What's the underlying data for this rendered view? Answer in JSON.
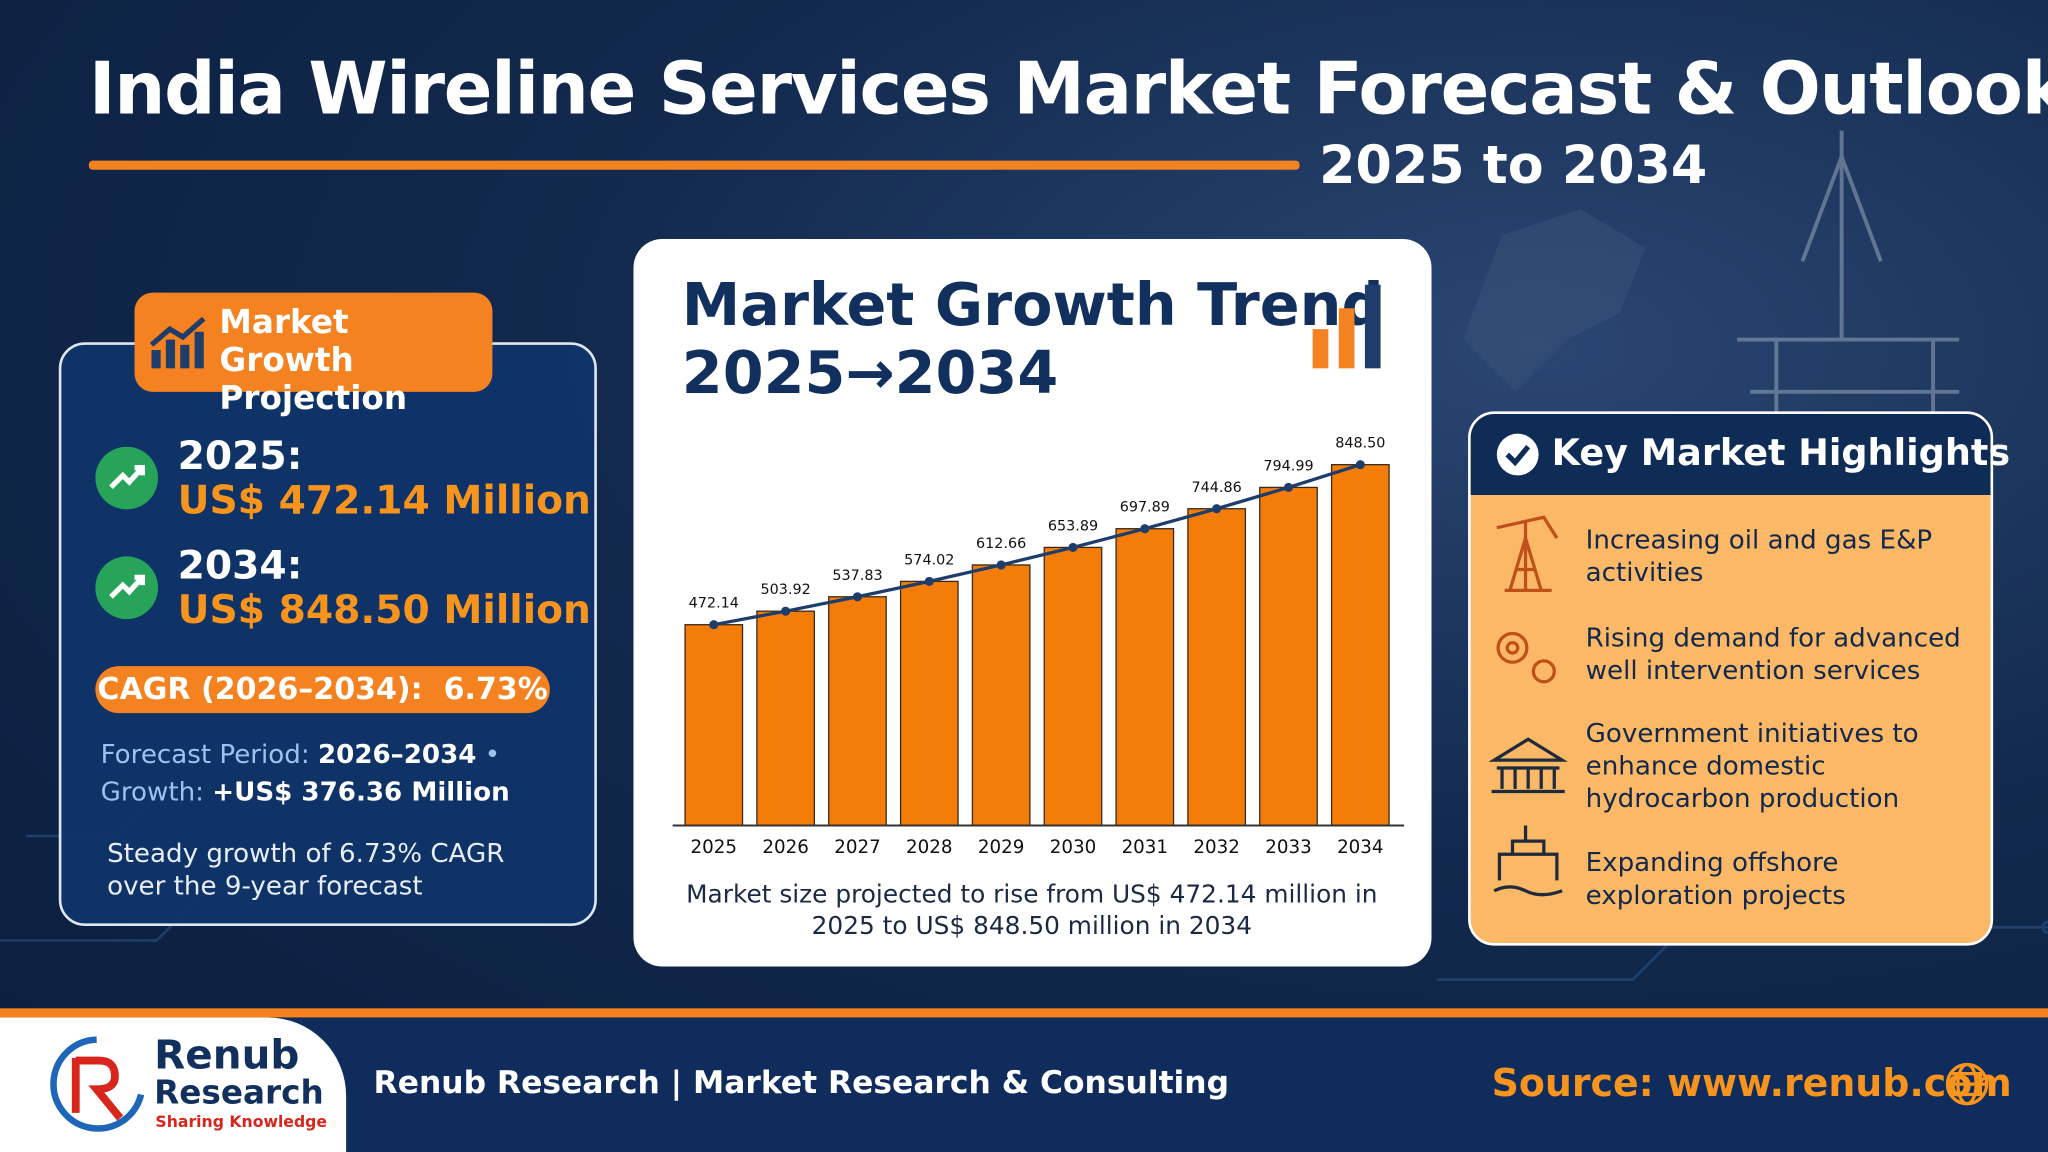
{
  "header": {
    "title": "India Wireline Services Market Forecast & Outlook",
    "subtitle": "2025 to 2034"
  },
  "projection": {
    "badge": "Market Growth Projection",
    "items": [
      {
        "year": "2025:",
        "value": "US$ 472.14 Million"
      },
      {
        "year": "2034:",
        "value": "US$ 848.50 Million"
      }
    ],
    "cagr": {
      "label": "CAGR (2026–2034):",
      "value": "6.73%"
    },
    "forecast": {
      "label": "Forecast Period:",
      "value": "2026–2034"
    },
    "growth": {
      "label": "Growth:",
      "value": "+US$ 376.36 Million"
    },
    "note": "Steady growth of 6.73% CAGR over the 9-year forecast"
  },
  "chart_data": {
    "type": "bar",
    "title": "Market Growth Trend",
    "subtitle": "2025→2034",
    "categories": [
      "2025",
      "2026",
      "2027",
      "2028",
      "2029",
      "2030",
      "2031",
      "2032",
      "2033",
      "2034"
    ],
    "values": [
      472.14,
      503.92,
      537.83,
      574.02,
      612.66,
      653.89,
      697.89,
      744.86,
      794.99,
      848.5
    ],
    "value_labels": [
      "472.14",
      "503.92",
      "537.83",
      "574.02",
      "612.66",
      "653.89",
      "697.89",
      "744.86",
      "794.99",
      "848.50"
    ],
    "color": "#f47d0a",
    "line_color": "#1f3d6b",
    "ylim": [
      0,
      900
    ],
    "caption": "Market size projected to rise from US$ 472.14 million in 2025 to US$ 848.50 million in 2034"
  },
  "highlights": {
    "title": "Key Market Highlights",
    "items": [
      "Increasing oil and gas E&P activities",
      "Rising demand for advanced well intervention services",
      "Government initiatives to enhance domestic hydrocarbon production",
      "Expanding offshore exploration projects"
    ]
  },
  "footer": {
    "brand": "Renub",
    "brand2": "Research",
    "slogan": "Sharing Knowledge",
    "tagline": "Renub Research | Market Research & Consulting",
    "source": "Source: www.renub.com"
  }
}
